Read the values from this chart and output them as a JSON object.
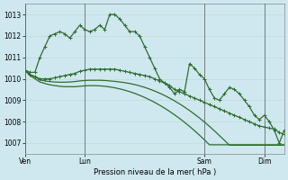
{
  "background_color": "#cfe8f0",
  "grid_color": "#b8d8c8",
  "line_color": "#2d6e2d",
  "title": "Pression niveau de la mer( hPa )",
  "ylim": [
    1006.5,
    1013.5
  ],
  "yticks": [
    1007,
    1008,
    1009,
    1010,
    1011,
    1012,
    1013
  ],
  "x_tick_labels": [
    "Ven",
    "Lun",
    "Sam",
    "Dim"
  ],
  "x_tick_positions": [
    0,
    12,
    36,
    48
  ],
  "x_vlines": [
    0,
    12,
    36,
    48
  ],
  "series1_x": [
    0,
    1,
    2,
    3,
    4,
    5,
    6,
    7,
    8,
    9,
    10,
    11,
    12,
    13,
    14,
    15,
    16,
    17,
    18,
    19,
    20,
    21,
    22,
    23,
    24,
    25,
    26,
    27,
    28,
    29,
    30,
    31,
    32,
    33,
    34,
    35,
    36,
    37,
    38,
    39,
    40,
    41,
    42,
    43,
    44,
    45,
    46,
    47,
    48,
    49,
    50,
    51,
    52
  ],
  "series1": [
    1010.4,
    1010.3,
    1010.3,
    1011.0,
    1011.5,
    1012.0,
    1012.1,
    1012.2,
    1012.1,
    1011.9,
    1012.2,
    1012.5,
    1012.3,
    1012.2,
    1012.3,
    1012.5,
    1012.3,
    1013.0,
    1013.0,
    1012.8,
    1012.5,
    1012.2,
    1012.2,
    1012.0,
    1011.5,
    1011.0,
    1010.5,
    1010.0,
    1009.8,
    1009.6,
    1009.3,
    1009.5,
    1009.4,
    1010.7,
    1010.5,
    1010.2,
    1010.0,
    1009.5,
    1009.1,
    1009.0,
    1009.3,
    1009.6,
    1009.5,
    1009.3,
    1009.0,
    1008.7,
    1008.3,
    1008.1,
    1008.3,
    1008.0,
    1007.6,
    1007.0,
    1007.6
  ],
  "series2": [
    1010.4,
    1010.2,
    1010.1,
    1010.0,
    1010.0,
    1010.0,
    1010.05,
    1010.1,
    1010.15,
    1010.2,
    1010.25,
    1010.35,
    1010.4,
    1010.45,
    1010.45,
    1010.45,
    1010.45,
    1010.45,
    1010.45,
    1010.4,
    1010.35,
    1010.3,
    1010.25,
    1010.2,
    1010.15,
    1010.1,
    1010.0,
    1009.9,
    1009.8,
    1009.7,
    1009.5,
    1009.4,
    1009.3,
    1009.2,
    1009.1,
    1009.0,
    1008.9,
    1008.8,
    1008.7,
    1008.6,
    1008.5,
    1008.4,
    1008.3,
    1008.2,
    1008.1,
    1008.0,
    1007.9,
    1007.8,
    1007.75,
    1007.7,
    1007.65,
    1007.5,
    1007.4
  ],
  "series3": [
    1010.4,
    1010.2,
    1010.1,
    1009.95,
    1009.9,
    1009.87,
    1009.85,
    1009.84,
    1009.84,
    1009.85,
    1009.87,
    1009.9,
    1009.92,
    1009.93,
    1009.93,
    1009.93,
    1009.92,
    1009.9,
    1009.88,
    1009.85,
    1009.82,
    1009.78,
    1009.73,
    1009.67,
    1009.6,
    1009.52,
    1009.43,
    1009.33,
    1009.22,
    1009.1,
    1008.97,
    1008.83,
    1008.68,
    1008.52,
    1008.35,
    1008.17,
    1007.98,
    1007.78,
    1007.57,
    1007.35,
    1007.13,
    1006.9,
    1006.9,
    1006.9,
    1006.9,
    1006.9,
    1006.9,
    1006.9,
    1006.9,
    1006.9,
    1006.9,
    1006.9,
    1006.9
  ],
  "series4": [
    1010.4,
    1010.15,
    1010.0,
    1009.85,
    1009.78,
    1009.72,
    1009.68,
    1009.65,
    1009.63,
    1009.63,
    1009.63,
    1009.65,
    1009.67,
    1009.68,
    1009.68,
    1009.67,
    1009.65,
    1009.62,
    1009.58,
    1009.53,
    1009.47,
    1009.4,
    1009.32,
    1009.23,
    1009.13,
    1009.02,
    1008.9,
    1008.77,
    1008.63,
    1008.48,
    1008.32,
    1008.15,
    1007.97,
    1007.78,
    1007.58,
    1007.37,
    1007.15,
    1006.92,
    1006.92,
    1006.92,
    1006.92,
    1006.92,
    1006.92,
    1006.92,
    1006.92,
    1006.92,
    1006.92,
    1006.92,
    1006.92,
    1006.92,
    1006.92,
    1006.92,
    1006.92
  ]
}
